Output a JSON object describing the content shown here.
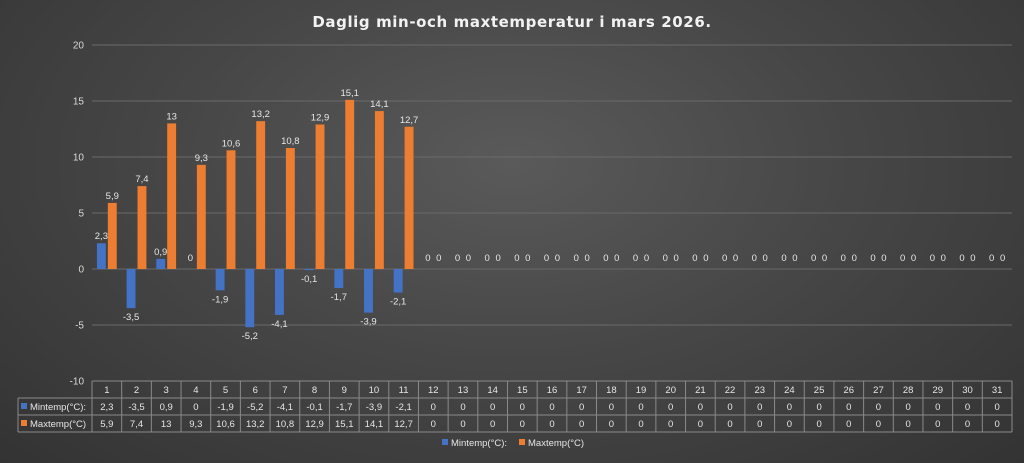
{
  "chart_data": {
    "type": "bar",
    "title": "Daglig min-och maxtemperatur i mars 2026.",
    "categories": [
      "1",
      "2",
      "3",
      "4",
      "5",
      "6",
      "7",
      "8",
      "9",
      "10",
      "11",
      "12",
      "13",
      "14",
      "15",
      "16",
      "17",
      "18",
      "19",
      "20",
      "21",
      "22",
      "23",
      "24",
      "25",
      "26",
      "27",
      "28",
      "29",
      "30",
      "31"
    ],
    "series": [
      {
        "name": "Mintemp(°C):",
        "color": "#4472c4",
        "values": [
          2.3,
          -3.5,
          0.9,
          0,
          -1.9,
          -5.2,
          -4.1,
          -0.1,
          -1.7,
          -3.9,
          -2.1,
          0,
          0,
          0,
          0,
          0,
          0,
          0,
          0,
          0,
          0,
          0,
          0,
          0,
          0,
          0,
          0,
          0,
          0,
          0,
          0
        ],
        "labels": [
          "2,3",
          "-3,5",
          "0,9",
          "0",
          "-1,9",
          "-5,2",
          "-4,1",
          "-0,1",
          "-1,7",
          "-3,9",
          "-2,1",
          "0",
          "0",
          "0",
          "0",
          "0",
          "0",
          "0",
          "0",
          "0",
          "0",
          "0",
          "0",
          "0",
          "0",
          "0",
          "0",
          "0",
          "0",
          "0",
          "0"
        ]
      },
      {
        "name": "Maxtemp(°C)",
        "color": "#ed7d31",
        "values": [
          5.9,
          7.4,
          13,
          9.3,
          10.6,
          13.2,
          10.8,
          12.9,
          15.1,
          14.1,
          12.7,
          0,
          0,
          0,
          0,
          0,
          0,
          0,
          0,
          0,
          0,
          0,
          0,
          0,
          0,
          0,
          0,
          0,
          0,
          0,
          0
        ],
        "labels": [
          "5,9",
          "7,4",
          "13",
          "9,3",
          "10,6",
          "13,2",
          "10,8",
          "12,9",
          "15,1",
          "14,1",
          "12,7",
          "0",
          "0",
          "0",
          "0",
          "0",
          "0",
          "0",
          "0",
          "0",
          "0",
          "0",
          "0",
          "0",
          "0",
          "0",
          "0",
          "0",
          "0",
          "0",
          "0"
        ]
      }
    ],
    "ylim": [
      -10,
      20
    ],
    "yticks": [
      "-10",
      "-5",
      "0",
      "5",
      "10",
      "15",
      "20"
    ],
    "grid": true,
    "legend": "bottom",
    "data_table": true
  }
}
